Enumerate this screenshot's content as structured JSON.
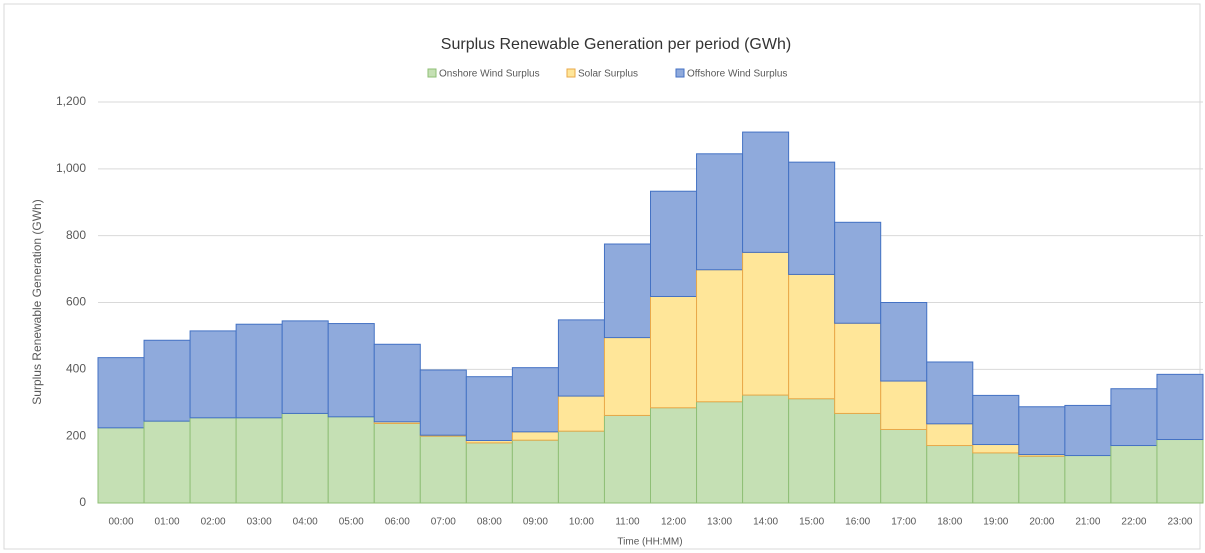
{
  "chart_data": {
    "type": "stacked_bar",
    "title": "Surplus Renewable Generation per period (GWh)",
    "x_label": "Time (HH:MM)",
    "y_label": "Surplus Renewable Generation (GWh)",
    "categories": [
      "00:00",
      "01:00",
      "02:00",
      "03:00",
      "04:00",
      "05:00",
      "06:00",
      "07:00",
      "08:00",
      "09:00",
      "10:00",
      "11:00",
      "12:00",
      "13:00",
      "14:00",
      "15:00",
      "16:00",
      "17:00",
      "18:00",
      "19:00",
      "20:00",
      "21:00",
      "22:00",
      "23:00"
    ],
    "series": [
      {
        "name": "Onshore Wind Surplus",
        "color": "#c5e0b4",
        "edge": "#8fbf76",
        "values": [
          225,
          245,
          255,
          255,
          268,
          258,
          238,
          200,
          180,
          188,
          215,
          262,
          285,
          303,
          323,
          312,
          268,
          220,
          172,
          150,
          140,
          142,
          172,
          190
        ]
      },
      {
        "name": "Solar Surplus",
        "color": "#ffe699",
        "edge": "#e9a94a",
        "values": [
          0,
          0,
          0,
          0,
          0,
          0,
          5,
          3,
          7,
          25,
          105,
          233,
          333,
          395,
          427,
          372,
          270,
          145,
          65,
          25,
          5,
          0,
          0,
          0
        ]
      },
      {
        "name": "Offshore Wind Surplus",
        "color": "#8faadc",
        "edge": "#4472c4",
        "values": [
          210,
          242,
          260,
          280,
          277,
          279,
          232,
          195,
          191,
          192,
          228,
          280,
          315,
          347,
          360,
          336,
          302,
          235,
          185,
          147,
          143,
          150,
          170,
          195
        ]
      }
    ],
    "ylim": [
      0,
      1200
    ],
    "yticks": [
      0,
      200,
      400,
      600,
      800,
      {
        "value": 1000,
        "label": "1,000"
      },
      {
        "value": 1200,
        "label": "1,200"
      }
    ],
    "grid": true,
    "legend": "top"
  }
}
